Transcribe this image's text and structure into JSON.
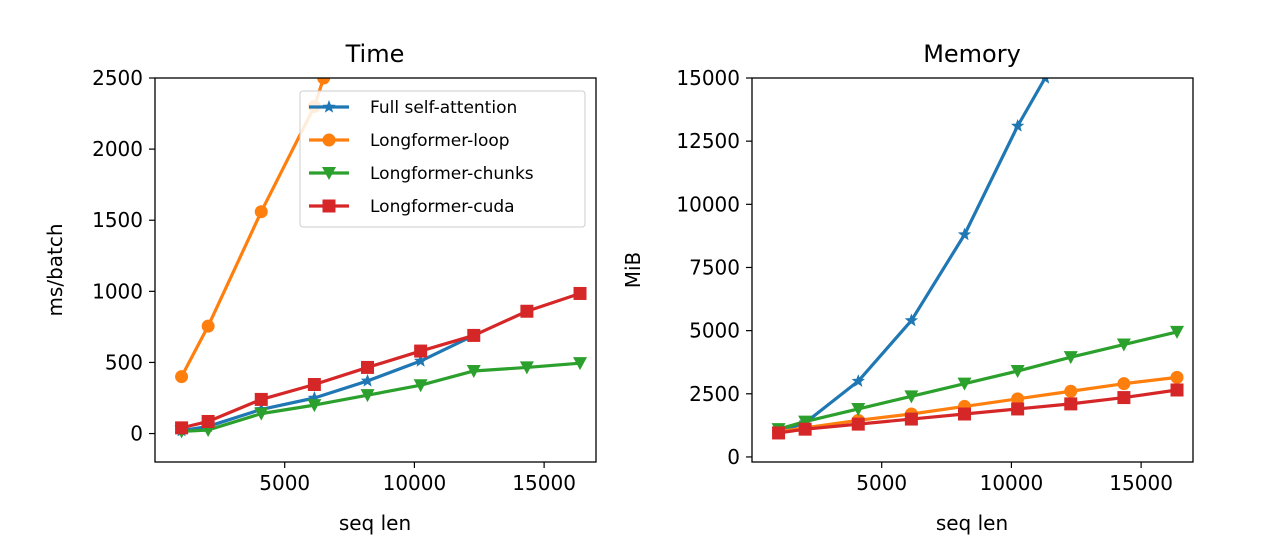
{
  "chart_data": [
    {
      "type": "line",
      "title": "Time",
      "xlabel": "seq len",
      "ylabel": "ms/batch",
      "xlim": [
        0,
        17000
      ],
      "ylim": [
        -200,
        2500
      ],
      "xticks": [
        5000,
        10000,
        15000
      ],
      "yticks": [
        0,
        500,
        1000,
        1500,
        2000,
        2500
      ],
      "legend": "top-right",
      "series": [
        {
          "name": "Full self-attention",
          "color": "#1f77b4",
          "marker": "star",
          "x": [
            1024,
            2048,
            4096,
            6144,
            8192,
            10240,
            12288
          ],
          "y": [
            20,
            50,
            170,
            250,
            370,
            510,
            690
          ]
        },
        {
          "name": "Longformer-loop",
          "color": "#ff7f0e",
          "marker": "circle",
          "x": [
            1024,
            2048,
            4096,
            6144,
            6500
          ],
          "y": [
            400,
            755,
            1560,
            2300,
            2500
          ]
        },
        {
          "name": "Longformer-chunks",
          "color": "#2ca02c",
          "marker": "triangle-down",
          "x": [
            1024,
            2048,
            4096,
            6144,
            8192,
            10240,
            12288,
            14336,
            16384
          ],
          "y": [
            15,
            25,
            140,
            200,
            270,
            340,
            440,
            465,
            495
          ]
        },
        {
          "name": "Longformer-cuda",
          "color": "#d62728",
          "marker": "square",
          "x": [
            1024,
            2048,
            4096,
            6144,
            8192,
            10240,
            12288,
            14336,
            16384
          ],
          "y": [
            40,
            85,
            240,
            345,
            465,
            580,
            690,
            860,
            985
          ]
        }
      ]
    },
    {
      "type": "line",
      "title": "Memory",
      "xlabel": "seq len",
      "ylabel": "MiB",
      "xlim": [
        0,
        17000
      ],
      "ylim": [
        -200,
        15000
      ],
      "xticks": [
        5000,
        10000,
        15000
      ],
      "yticks": [
        0,
        2500,
        5000,
        7500,
        10000,
        12500,
        15000
      ],
      "series": [
        {
          "name": "Full self-attention",
          "color": "#1f77b4",
          "marker": "star",
          "x": [
            1024,
            2048,
            4096,
            6144,
            8192,
            10240,
            11300
          ],
          "y": [
            1000,
            1350,
            3000,
            5400,
            8800,
            13100,
            15000
          ]
        },
        {
          "name": "Longformer-loop",
          "color": "#ff7f0e",
          "marker": "circle",
          "x": [
            1024,
            2048,
            4096,
            6144,
            8192,
            10240,
            12288,
            14336,
            16384
          ],
          "y": [
            1000,
            1150,
            1450,
            1700,
            2000,
            2300,
            2600,
            2900,
            3150
          ]
        },
        {
          "name": "Longformer-chunks",
          "color": "#2ca02c",
          "marker": "triangle-down",
          "x": [
            1024,
            2048,
            4096,
            6144,
            8192,
            10240,
            12288,
            14336,
            16384
          ],
          "y": [
            1100,
            1400,
            1900,
            2400,
            2900,
            3400,
            3950,
            4450,
            4950
          ]
        },
        {
          "name": "Longformer-cuda",
          "color": "#d62728",
          "marker": "square",
          "x": [
            1024,
            2048,
            4096,
            6144,
            8192,
            10240,
            12288,
            14336,
            16384
          ],
          "y": [
            950,
            1100,
            1300,
            1500,
            1700,
            1900,
            2100,
            2350,
            2650
          ]
        }
      ]
    }
  ]
}
